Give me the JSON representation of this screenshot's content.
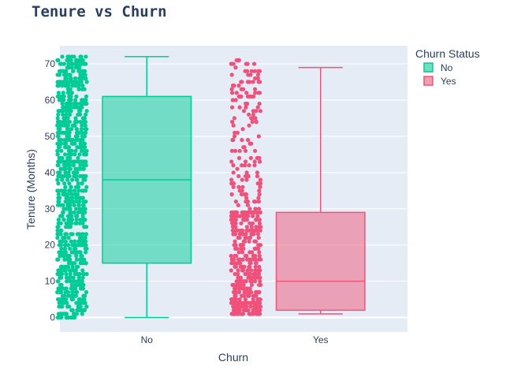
{
  "chart_data": {
    "type": "box",
    "title": "Tenure vs Churn",
    "xlabel": "Churn",
    "ylabel": "Tenure (Months)",
    "categories": [
      "No",
      "Yes"
    ],
    "yticks": [
      0,
      10,
      20,
      30,
      40,
      50,
      60,
      70
    ],
    "ylim": [
      -4,
      75
    ],
    "grid": true,
    "points_shown": "all (jittered, left of box)",
    "legend": {
      "title": "Churn Status",
      "placement": "top-right",
      "entries": [
        "No",
        "Yes"
      ]
    },
    "series": [
      {
        "name": "No",
        "category": "No",
        "color": "#00cc96",
        "min": 0,
        "q1": 15,
        "median": 38,
        "q3": 61,
        "max": 72,
        "points_range": [
          0,
          72
        ]
      },
      {
        "name": "Yes",
        "category": "Yes",
        "color": "#ef553b",
        "line_color": "#f0547a",
        "min": 1,
        "q1": 2,
        "median": 10,
        "q3": 29,
        "max": 69,
        "points_range": [
          1,
          72
        ]
      }
    ]
  }
}
